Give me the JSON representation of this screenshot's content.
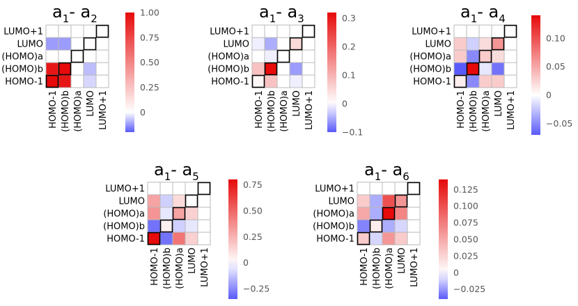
{
  "chart_data": [
    {
      "type": "heatmap",
      "title": {
        "main": "a",
        "sub1": "1",
        "sep": "- a",
        "sub2": "2"
      },
      "rows": [
        "LUMO+1",
        "LUMO",
        "(HOMO)a",
        "(HOMO)b",
        "HOMO-1"
      ],
      "columns": [
        "HOMO-1",
        "(HOMO)b",
        "(HOMO)a",
        "LUMO",
        "LUMO+1"
      ],
      "values": [
        [
          0,
          0,
          0,
          0,
          0
        ],
        [
          -0.12,
          -0.12,
          0,
          0.01,
          0
        ],
        [
          0,
          0,
          0,
          0,
          0
        ],
        [
          0.95,
          1.0,
          0,
          -0.08,
          0
        ],
        [
          1.0,
          0.95,
          0,
          -0.05,
          0
        ]
      ],
      "diagonal_outlined": true,
      "colorbar": {
        "min": -0.2,
        "max": 1.0,
        "ticks": [
          "1.00",
          "0.75",
          "0.50",
          "0.25",
          "0"
        ],
        "tick_values": [
          1.0,
          0.75,
          0.5,
          0.25,
          0
        ]
      }
    },
    {
      "type": "heatmap",
      "title": {
        "main": "a",
        "sub1": "1",
        "sep": "- a",
        "sub2": "3"
      },
      "rows": [
        "LUMO+1",
        "LUMO",
        "(HOMO)a",
        "(HOMO)b",
        "HOMO-1"
      ],
      "columns": [
        "HOMO-1",
        "(HOMO)b",
        "(HOMO)a",
        "LUMO",
        "LUMO+1"
      ],
      "values": [
        [
          0,
          0,
          0,
          0,
          0
        ],
        [
          -0.01,
          -0.05,
          0,
          0.05,
          0
        ],
        [
          0,
          -0.01,
          0,
          0,
          0
        ],
        [
          0.08,
          0.32,
          0,
          -0.06,
          0
        ],
        [
          0.01,
          0.08,
          0,
          -0.01,
          0
        ]
      ],
      "diagonal_outlined": true,
      "colorbar": {
        "min": -0.1,
        "max": 0.32,
        "ticks": [
          "0.3",
          "0.2",
          "0.1",
          "0",
          "−0.1"
        ],
        "tick_values": [
          0.3,
          0.2,
          0.1,
          0,
          -0.1
        ]
      }
    },
    {
      "type": "heatmap",
      "title": {
        "main": "a",
        "sub1": "1",
        "sep": "- a",
        "sub2": "4"
      },
      "rows": [
        "LUMO+1",
        "LUMO",
        "(HOMO)a",
        "(HOMO)b",
        "HOMO-1"
      ],
      "columns": [
        "HOMO-1",
        "(HOMO)b",
        "(HOMO)a",
        "LUMO",
        "LUMO+1"
      ],
      "values": [
        [
          0,
          0,
          0,
          0,
          0
        ],
        [
          0.03,
          -0.02,
          0.02,
          0.06,
          0
        ],
        [
          0.03,
          -0.05,
          0.03,
          0.02,
          0
        ],
        [
          -0.07,
          0.14,
          -0.01,
          -0.06,
          0
        ],
        [
          0.01,
          -0.05,
          0.03,
          0.03,
          0
        ]
      ],
      "diagonal_outlined": true,
      "colorbar": {
        "min": -0.07,
        "max": 0.14,
        "ticks": [
          "0.10",
          "0.05",
          "0",
          "−0.05"
        ],
        "tick_values": [
          0.1,
          0.05,
          0,
          -0.05
        ]
      }
    },
    {
      "type": "heatmap",
      "title": {
        "main": "a",
        "sub1": "1",
        "sep": "- a",
        "sub2": "5"
      },
      "rows": [
        "LUMO+1",
        "LUMO",
        "(HOMO)a",
        "(HOMO)b",
        "HOMO-1"
      ],
      "columns": [
        "HOMO-1",
        "(HOMO)b",
        "(HOMO)a",
        "LUMO",
        "LUMO+1"
      ],
      "values": [
        [
          0,
          0,
          0,
          0,
          0
        ],
        [
          0.3,
          -0.1,
          0.12,
          0,
          0
        ],
        [
          0.35,
          -0.05,
          0.3,
          0.15,
          0
        ],
        [
          -0.3,
          0.05,
          -0.1,
          -0.05,
          0
        ],
        [
          0.8,
          -0.3,
          0.45,
          0.15,
          0
        ]
      ],
      "diagonal_outlined": true,
      "colorbar": {
        "min": -0.35,
        "max": 0.8,
        "ticks": [
          "0.75",
          "0.50",
          "0.25",
          "0",
          "−0.25"
        ],
        "tick_values": [
          0.75,
          0.5,
          0.25,
          0,
          -0.25
        ]
      }
    },
    {
      "type": "heatmap",
      "title": {
        "main": "a",
        "sub1": "1",
        "sep": "- a",
        "sub2": "6"
      },
      "rows": [
        "LUMO+1",
        "LUMO",
        "(HOMO)a",
        "(HOMO)b",
        "HOMO-1"
      ],
      "columns": [
        "HOMO-1",
        "(HOMO)b",
        "(HOMO)a",
        "LUMO",
        "LUMO+1"
      ],
      "values": [
        [
          0,
          0,
          0,
          0,
          0
        ],
        [
          0.03,
          -0.02,
          0.1,
          0.06,
          0
        ],
        [
          0.05,
          -0.02,
          0.14,
          0.07,
          0
        ],
        [
          -0.03,
          0.01,
          -0.02,
          -0.01,
          0
        ],
        [
          0.03,
          -0.01,
          0.06,
          0.03,
          0
        ]
      ],
      "diagonal_outlined": true,
      "colorbar": {
        "min": -0.04,
        "max": 0.14,
        "ticks": [
          "0.125",
          "0.100",
          "0.075",
          "0.050",
          "0.025",
          "0",
          "−0.025"
        ],
        "tick_values": [
          0.125,
          0.1,
          0.075,
          0.05,
          0.025,
          0,
          -0.025
        ]
      }
    }
  ]
}
